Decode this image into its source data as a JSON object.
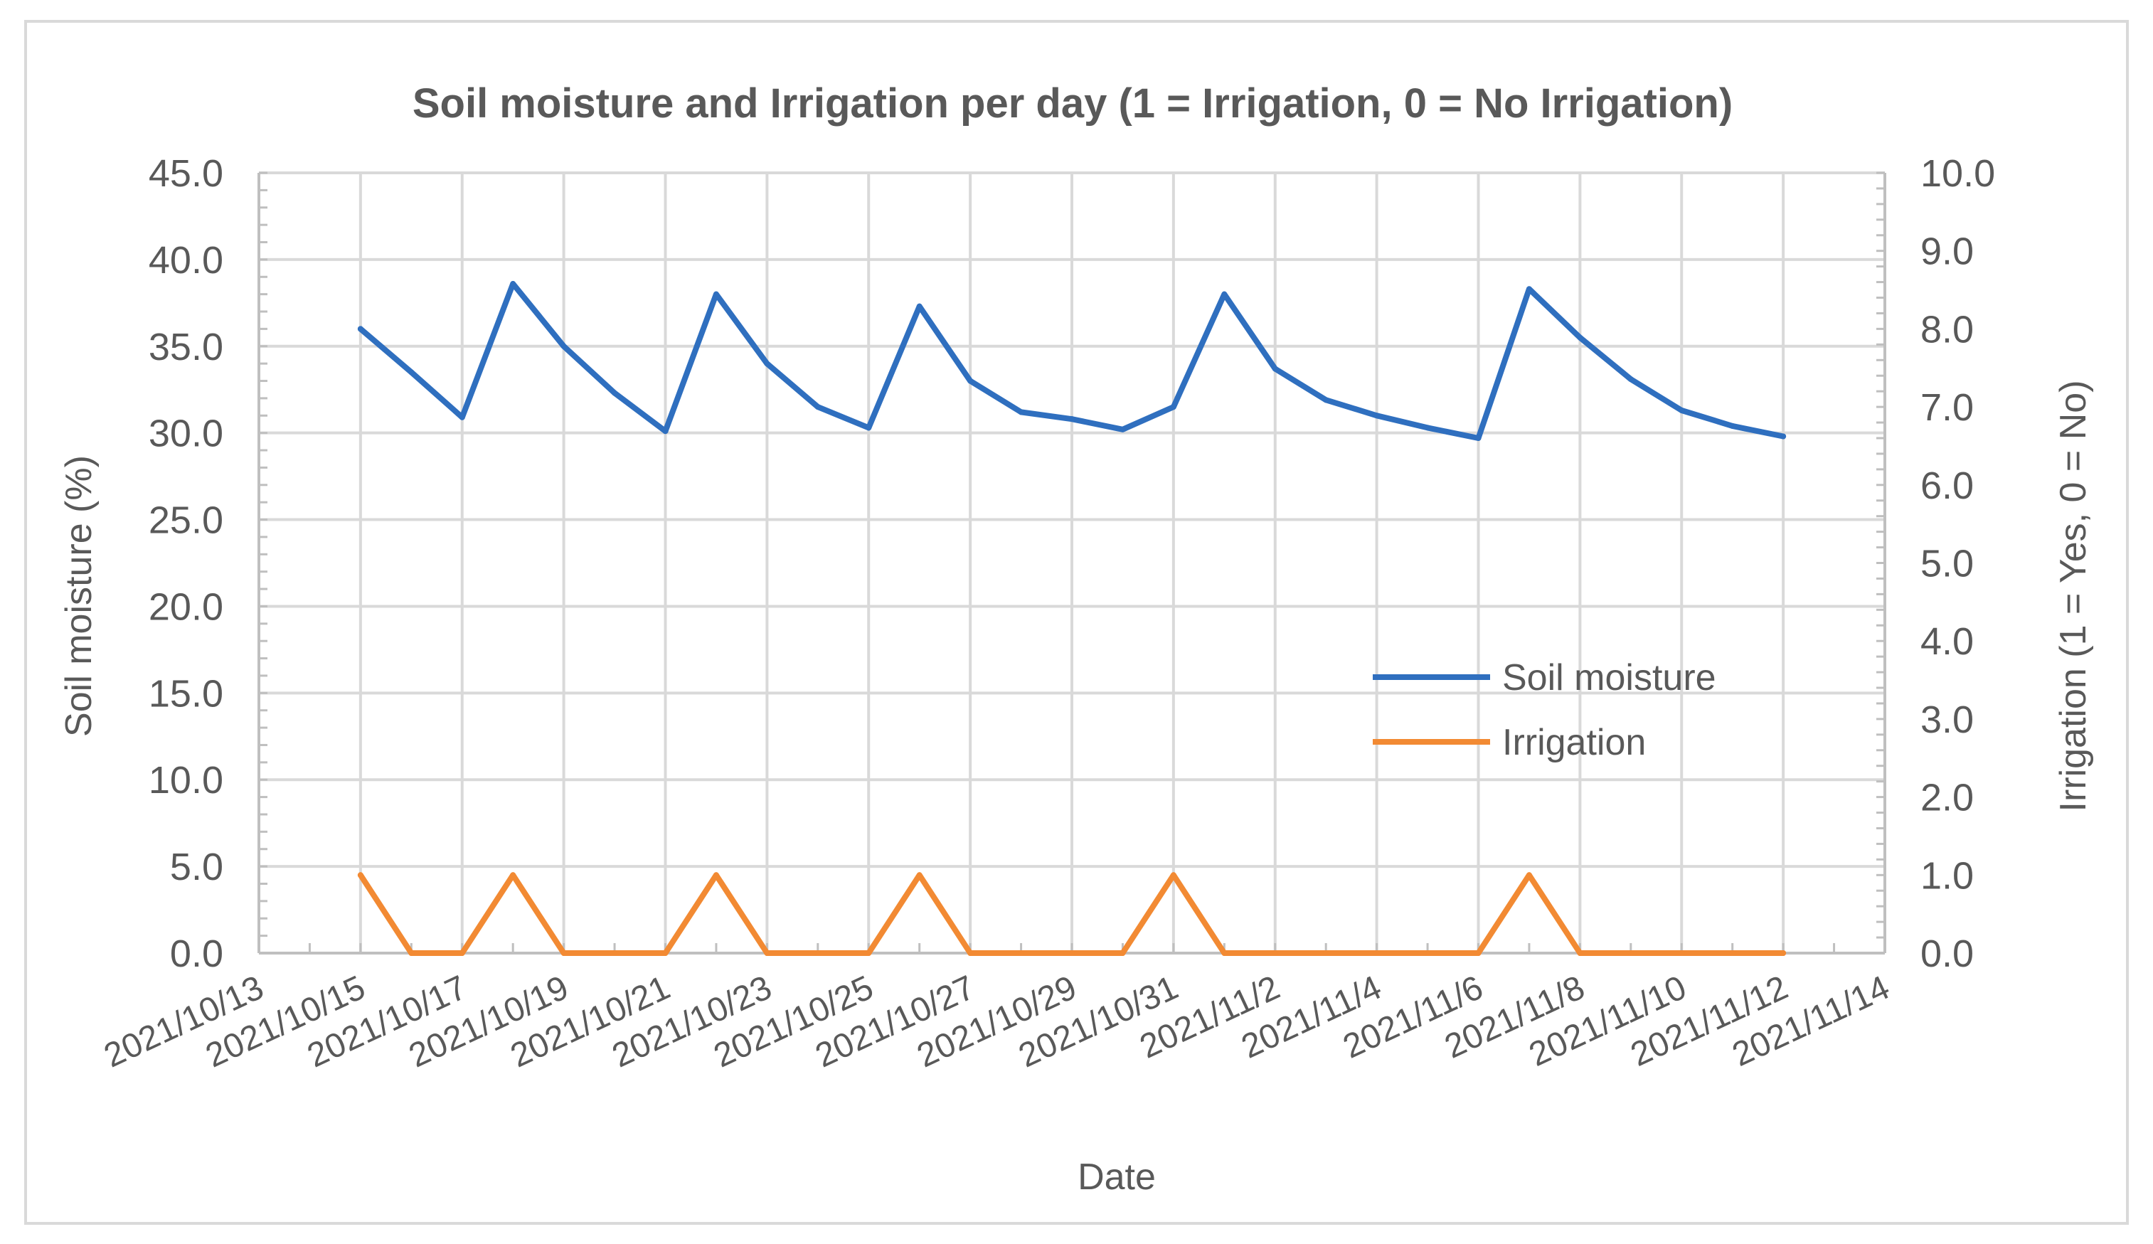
{
  "chart_data": {
    "type": "line",
    "title": "Soil moisture and Irrigation per day (1 = Irrigation, 0 = No Irrigation)",
    "xlabel": "Date",
    "ylabel": "Soil moisture (%)",
    "y2label": "Irrigation (1 = Yes, 0 = No)",
    "ylim": [
      0,
      45
    ],
    "y2lim": [
      0,
      10
    ],
    "xlim": [
      "2021/10/13",
      "2021/11/14"
    ],
    "grid": true,
    "legend_position": "center-right",
    "y_ticks": [
      "0.0",
      "5.0",
      "10.0",
      "15.0",
      "20.0",
      "25.0",
      "30.0",
      "35.0",
      "40.0",
      "45.0"
    ],
    "y2_ticks": [
      "0.0",
      "1.0",
      "2.0",
      "3.0",
      "4.0",
      "5.0",
      "6.0",
      "7.0",
      "8.0",
      "9.0",
      "10.0"
    ],
    "x_ticks": [
      "2021/10/13",
      "2021/10/15",
      "2021/10/17",
      "2021/10/19",
      "2021/10/21",
      "2021/10/23",
      "2021/10/25",
      "2021/10/27",
      "2021/10/29",
      "2021/10/31",
      "2021/11/2",
      "2021/11/4",
      "2021/11/6",
      "2021/11/8",
      "2021/11/10",
      "2021/11/12",
      "2021/11/14"
    ],
    "series": [
      {
        "name": "Soil moisture",
        "axis": "left",
        "color": "#2f6fbf",
        "x": [
          "2021/10/15",
          "2021/10/16",
          "2021/10/17",
          "2021/10/18",
          "2021/10/19",
          "2021/10/20",
          "2021/10/21",
          "2021/10/22",
          "2021/10/23",
          "2021/10/24",
          "2021/10/25",
          "2021/10/26",
          "2021/10/27",
          "2021/10/28",
          "2021/10/29",
          "2021/10/30",
          "2021/10/31",
          "2021/11/1",
          "2021/11/2",
          "2021/11/3",
          "2021/11/4",
          "2021/11/5",
          "2021/11/6",
          "2021/11/7",
          "2021/11/8",
          "2021/11/9",
          "2021/11/10",
          "2021/11/11",
          "2021/11/12"
        ],
        "values": [
          36.0,
          33.5,
          30.9,
          38.6,
          35.0,
          32.3,
          30.1,
          38.0,
          34.0,
          31.5,
          30.3,
          37.3,
          33.0,
          31.2,
          30.8,
          30.2,
          31.5,
          38.0,
          33.7,
          31.9,
          31.0,
          30.3,
          29.7,
          38.3,
          35.5,
          33.1,
          31.3,
          30.4,
          29.8
        ]
      },
      {
        "name": "Irrigation",
        "axis": "right",
        "color": "#f28a33",
        "x": [
          "2021/10/15",
          "2021/10/16",
          "2021/10/17",
          "2021/10/18",
          "2021/10/19",
          "2021/10/20",
          "2021/10/21",
          "2021/10/22",
          "2021/10/23",
          "2021/10/24",
          "2021/10/25",
          "2021/10/26",
          "2021/10/27",
          "2021/10/28",
          "2021/10/29",
          "2021/10/30",
          "2021/10/31",
          "2021/11/1",
          "2021/11/2",
          "2021/11/3",
          "2021/11/4",
          "2021/11/5",
          "2021/11/6",
          "2021/11/7",
          "2021/11/8",
          "2021/11/9",
          "2021/11/10",
          "2021/11/11",
          "2021/11/12"
        ],
        "values": [
          1,
          0,
          0,
          1,
          0,
          0,
          0,
          1,
          0,
          0,
          0,
          1,
          0,
          0,
          0,
          0,
          1,
          0,
          0,
          0,
          0,
          0,
          0,
          1,
          0,
          0,
          0,
          0,
          0
        ]
      }
    ]
  }
}
